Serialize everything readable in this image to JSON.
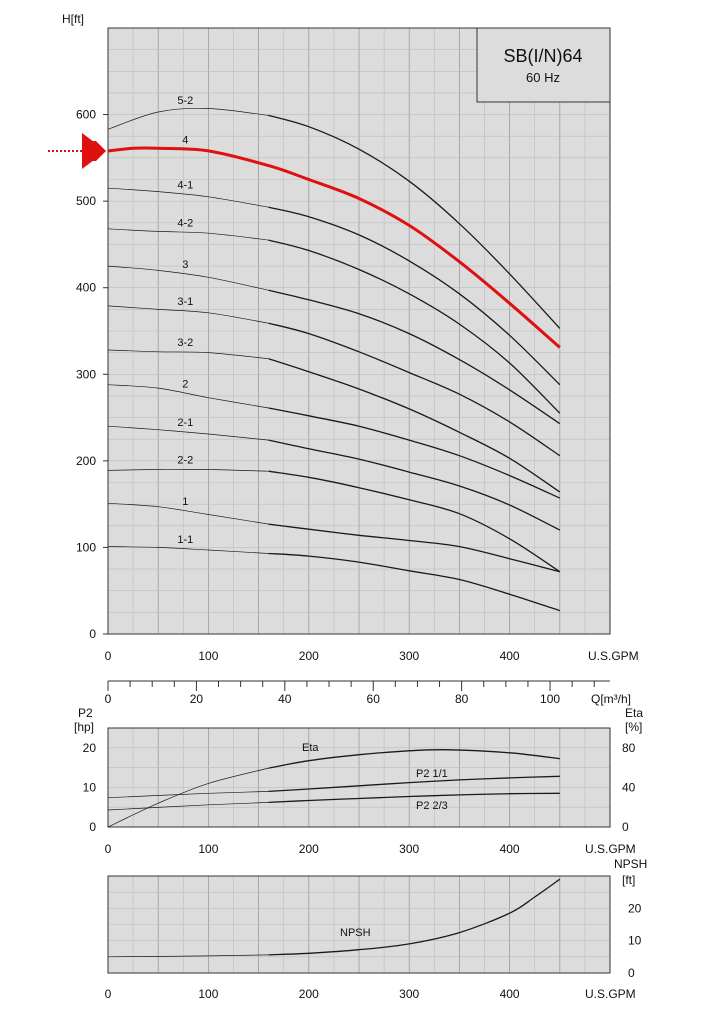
{
  "chart_data": [
    {
      "type": "line",
      "id": "head",
      "title": "SB(I/N)64",
      "subtitle": "60 Hz",
      "ylabel": "H[ft]",
      "xlabel": "U.S.GPM",
      "x2label": "Q[m³/h]",
      "xlim": [
        0,
        500
      ],
      "ylim": [
        0,
        600
      ],
      "x_ticks": [
        0,
        100,
        200,
        300,
        400
      ],
      "y_ticks": [
        0,
        100,
        200,
        300,
        400,
        500,
        600
      ],
      "x2_ticks": [
        0,
        20,
        40,
        60,
        80,
        100
      ],
      "grid": true,
      "highlight": "4",
      "highlight_color": "#e01010",
      "series": [
        {
          "name": "5-2",
          "x": [
            0,
            50,
            100,
            160,
            200,
            250,
            300,
            350,
            400,
            450
          ],
          "y": [
            583,
            603,
            607,
            599,
            586,
            560,
            523,
            474,
            416,
            353
          ]
        },
        {
          "name": "4",
          "x": [
            0,
            25,
            50,
            100,
            160,
            200,
            250,
            300,
            350,
            400,
            450
          ],
          "y": [
            558,
            561,
            561,
            558,
            541,
            525,
            503,
            472,
            430,
            382,
            331
          ]
        },
        {
          "name": "4-1",
          "x": [
            0,
            50,
            100,
            160,
            200,
            250,
            300,
            350,
            400,
            450
          ],
          "y": [
            515,
            511,
            505,
            493,
            482,
            461,
            431,
            393,
            345,
            288
          ]
        },
        {
          "name": "4-2",
          "x": [
            0,
            50,
            100,
            160,
            200,
            250,
            300,
            350,
            400,
            450
          ],
          "y": [
            468,
            465,
            463,
            455,
            443,
            421,
            393,
            358,
            313,
            255
          ]
        },
        {
          "name": "3",
          "x": [
            0,
            50,
            100,
            160,
            200,
            250,
            300,
            350,
            400,
            450
          ],
          "y": [
            425,
            420,
            412,
            397,
            386,
            370,
            347,
            317,
            282,
            243
          ]
        },
        {
          "name": "3-1",
          "x": [
            0,
            50,
            100,
            160,
            200,
            250,
            300,
            350,
            400,
            450
          ],
          "y": [
            379,
            375,
            371,
            359,
            347,
            326,
            302,
            277,
            245,
            206
          ]
        },
        {
          "name": "3-2",
          "x": [
            0,
            50,
            100,
            160,
            200,
            250,
            300,
            350,
            400,
            450
          ],
          "y": [
            328,
            326,
            325,
            318,
            303,
            283,
            260,
            233,
            203,
            164
          ]
        },
        {
          "name": "2",
          "x": [
            0,
            50,
            100,
            160,
            200,
            250,
            300,
            350,
            400,
            450
          ],
          "y": [
            288,
            284,
            273,
            261,
            252,
            240,
            224,
            206,
            183,
            157
          ]
        },
        {
          "name": "2-1",
          "x": [
            0,
            50,
            100,
            160,
            200,
            250,
            300,
            350,
            400,
            450
          ],
          "y": [
            240,
            236,
            231,
            224,
            214,
            202,
            187,
            171,
            149,
            120
          ]
        },
        {
          "name": "2-2",
          "x": [
            0,
            50,
            100,
            160,
            200,
            250,
            300,
            350,
            400,
            450
          ],
          "y": [
            189,
            190,
            190,
            188,
            181,
            169,
            155,
            139,
            110,
            72
          ]
        },
        {
          "name": "1",
          "x": [
            0,
            50,
            100,
            160,
            200,
            250,
            300,
            350,
            400,
            450
          ],
          "y": [
            151,
            147,
            138,
            127,
            121,
            114,
            108,
            101,
            87,
            72
          ]
        },
        {
          "name": "1-1",
          "x": [
            0,
            50,
            100,
            160,
            200,
            250,
            300,
            350,
            400,
            450
          ],
          "y": [
            101,
            100,
            97,
            93,
            90,
            83,
            73,
            63,
            46,
            27
          ]
        }
      ]
    },
    {
      "type": "line",
      "id": "power",
      "ylabel": "P2",
      "yunit": "[hp]",
      "y2label": "Eta",
      "y2unit": "[%]",
      "xlabel": "U.S.GPM",
      "xlim": [
        0,
        500
      ],
      "ylim": [
        0,
        20
      ],
      "y2lim": [
        0,
        80
      ],
      "x_ticks": [
        0,
        100,
        200,
        300,
        400
      ],
      "y_ticks": [
        0,
        10,
        20
      ],
      "y2_ticks": [
        0,
        40,
        80
      ],
      "grid": true,
      "series": [
        {
          "name": "Eta",
          "axis": "right",
          "x": [
            0,
            50,
            100,
            160,
            200,
            250,
            300,
            340,
            400,
            450
          ],
          "y": [
            0,
            24,
            44,
            59.5,
            67,
            73,
            77,
            78,
            75,
            69
          ]
        },
        {
          "name": "P2 1/1",
          "axis": "left",
          "x": [
            0,
            100,
            160,
            200,
            250,
            300,
            350,
            400,
            450
          ],
          "y": [
            7.4,
            8.5,
            9.0,
            9.6,
            10.4,
            11.2,
            11.9,
            12.4,
            12.8
          ]
        },
        {
          "name": "P2 2/3",
          "axis": "left",
          "x": [
            0,
            100,
            160,
            200,
            250,
            300,
            350,
            400,
            450
          ],
          "y": [
            4.3,
            5.6,
            6.2,
            6.7,
            7.2,
            7.7,
            8.1,
            8.4,
            8.5
          ]
        }
      ]
    },
    {
      "type": "line",
      "id": "npsh",
      "ylabel": "NPSH",
      "yunit": "[ft]",
      "xlabel": "U.S.GPM",
      "xlim": [
        0,
        500
      ],
      "ylim": [
        0,
        30
      ],
      "x_ticks": [
        0,
        100,
        200,
        300,
        400
      ],
      "y_ticks": [
        0,
        10,
        20
      ],
      "grid": true,
      "series": [
        {
          "name": "NPSH",
          "x": [
            0,
            100,
            160,
            200,
            250,
            300,
            350,
            400,
            425,
            450
          ],
          "y": [
            5,
            5.3,
            5.6,
            6.1,
            7.2,
            9,
            12.5,
            18.5,
            23.5,
            29
          ]
        }
      ]
    }
  ]
}
